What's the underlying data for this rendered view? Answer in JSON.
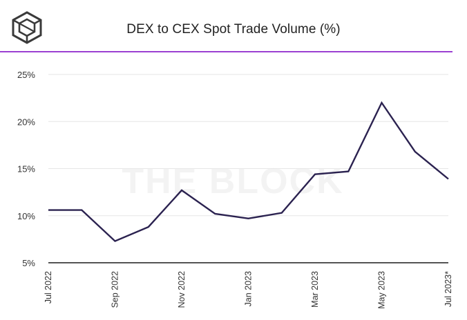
{
  "header": {
    "title": "DEX to CEX Spot Trade Volume (%)",
    "rule_color": "#9b3fd1"
  },
  "watermark": "THE BLOCK",
  "colors": {
    "line": "#2b2250",
    "grid": "#e6e6e6",
    "axis": "#1a1a1a"
  },
  "chart_data": {
    "type": "line",
    "title": "DEX to CEX Spot Trade Volume (%)",
    "xlabel": "",
    "ylabel": "",
    "ylim": [
      5,
      25
    ],
    "yticks": [
      5,
      10,
      15,
      20,
      25
    ],
    "ytick_labels": [
      "5%",
      "10%",
      "15%",
      "20%",
      "25%"
    ],
    "grid": true,
    "x": [
      "Jul 2022",
      "Aug 2022",
      "Sep 2022",
      "Oct 2022",
      "Nov 2022",
      "Dec 2022",
      "Jan 2023",
      "Feb 2023",
      "Mar 2023",
      "Apr 2023",
      "May 2023",
      "Jun 2023",
      "Jul 2023*"
    ],
    "xtick_labels": [
      "Jul 2022",
      "Sep 2022",
      "Nov 2022",
      "Jan 2023",
      "Mar 2023",
      "May 2023",
      "Jul 2023*"
    ],
    "series": [
      {
        "values": [
          10.6,
          10.6,
          7.3,
          8.8,
          12.7,
          10.2,
          9.7,
          10.3,
          14.4,
          14.7,
          22.0,
          16.8,
          13.9
        ]
      }
    ]
  }
}
